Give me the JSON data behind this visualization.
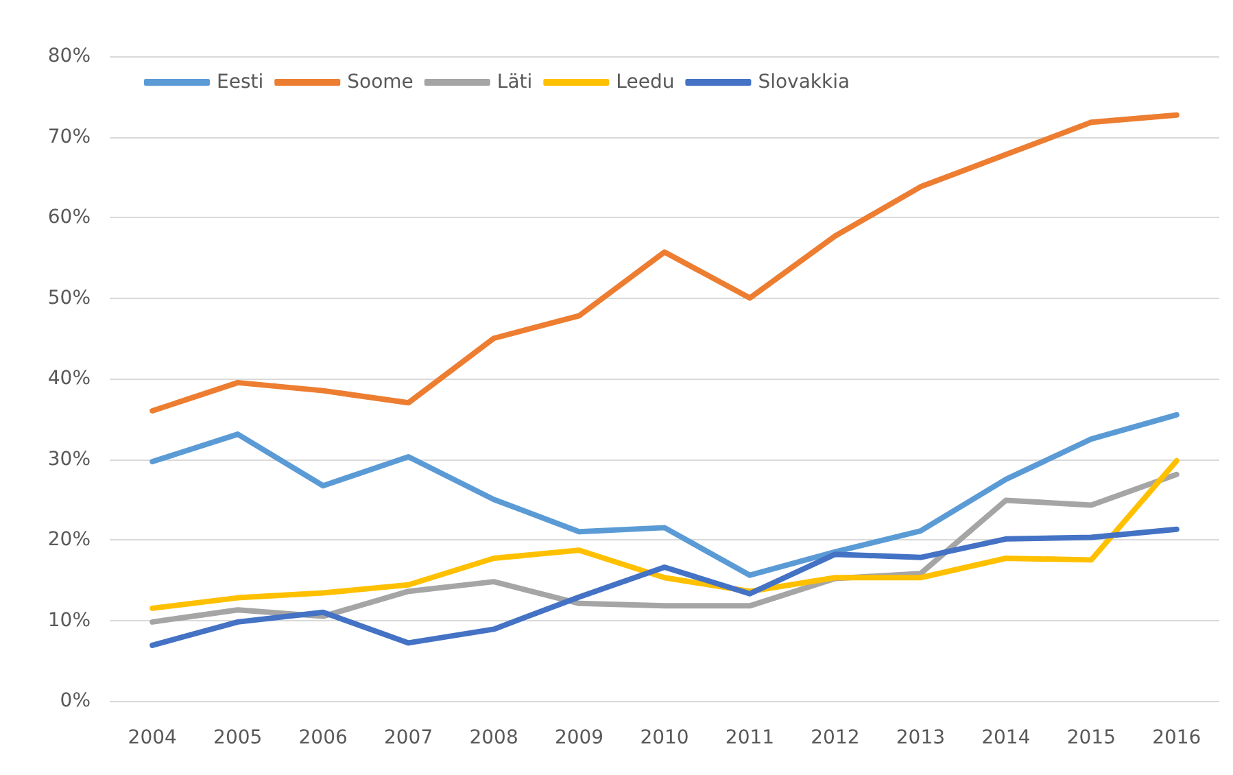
{
  "chart_data": {
    "type": "line",
    "categories": [
      "2004",
      "2005",
      "2006",
      "2007",
      "2008",
      "2009",
      "2010",
      "2011",
      "2012",
      "2013",
      "2014",
      "2015",
      "2016"
    ],
    "series": [
      {
        "name": "Eesti",
        "color": "#5b9bd5",
        "values": [
          29.7,
          33.1,
          26.7,
          30.3,
          25,
          21,
          21.5,
          15.6,
          18.5,
          21.1,
          27.5,
          32.5,
          35.5
        ]
      },
      {
        "name": "Soome",
        "color": "#ed7d31",
        "values": [
          36,
          39.5,
          38.5,
          37,
          45,
          47.8,
          55.7,
          50,
          57.7,
          63.8,
          67.8,
          71.8,
          72.7
        ]
      },
      {
        "name": "Läti",
        "color": "#a5a5a5",
        "values": [
          9.8,
          11.3,
          10.5,
          13.6,
          14.8,
          12.1,
          11.8,
          11.8,
          15.2,
          15.8,
          24.9,
          24.3,
          28.1
        ]
      },
      {
        "name": "Leedu",
        "color": "#ffc000",
        "values": [
          11.5,
          12.8,
          13.4,
          14.4,
          17.7,
          18.7,
          15.3,
          13.6,
          15.3,
          15.3,
          17.7,
          17.5,
          29.8
        ]
      },
      {
        "name": "Slovakkia",
        "color": "#4472c4",
        "values": [
          6.9,
          9.8,
          11,
          7.2,
          8.9,
          12.9,
          16.6,
          13.3,
          18.2,
          17.8,
          20.1,
          20.3,
          21.3
        ]
      }
    ],
    "ylim": [
      0,
      80
    ],
    "yticks": [
      {
        "value": 0,
        "label": "0%"
      },
      {
        "value": 10,
        "label": "10%"
      },
      {
        "value": 20,
        "label": "20%"
      },
      {
        "value": 30,
        "label": "30%"
      },
      {
        "value": 40,
        "label": "40%"
      },
      {
        "value": 50,
        "label": "50%"
      },
      {
        "value": 60,
        "label": "60%"
      },
      {
        "value": 70,
        "label": "70%"
      },
      {
        "value": 80,
        "label": "80%"
      }
    ],
    "grid": "y",
    "legend": "top left",
    "marker": "none",
    "line_style": "solid"
  }
}
